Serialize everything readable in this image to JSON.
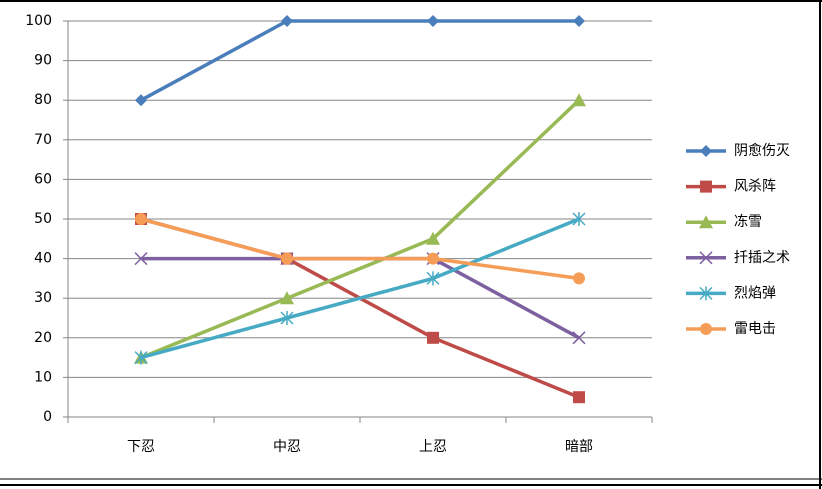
{
  "chart_data": {
    "type": "line",
    "categories": [
      "下忍",
      "中忍",
      "上忍",
      "暗部"
    ],
    "series": [
      {
        "name": "阴愈伤灭",
        "color": "#4a7ebb",
        "marker": "diamond",
        "values": [
          80,
          100,
          100,
          100
        ]
      },
      {
        "name": "风杀阵",
        "color": "#be4b48",
        "marker": "square",
        "values": [
          50,
          40,
          20,
          5
        ]
      },
      {
        "name": "冻雪",
        "color": "#98b954",
        "marker": "triangle",
        "values": [
          15,
          30,
          45,
          80
        ]
      },
      {
        "name": "扦插之术",
        "color": "#7d60a0",
        "marker": "x",
        "values": [
          40,
          40,
          40,
          20
        ]
      },
      {
        "name": "烈焰弹",
        "color": "#46aac5",
        "marker": "asterisk",
        "values": [
          15,
          25,
          35,
          50
        ]
      },
      {
        "name": "雷电击",
        "color": "#f59d56",
        "marker": "circle",
        "values": [
          50,
          40,
          40,
          35
        ]
      }
    ],
    "ylim": [
      0,
      100
    ],
    "yticks": [
      0,
      10,
      20,
      30,
      40,
      50,
      60,
      70,
      80,
      90,
      100
    ],
    "grid": true,
    "legend": "right"
  }
}
